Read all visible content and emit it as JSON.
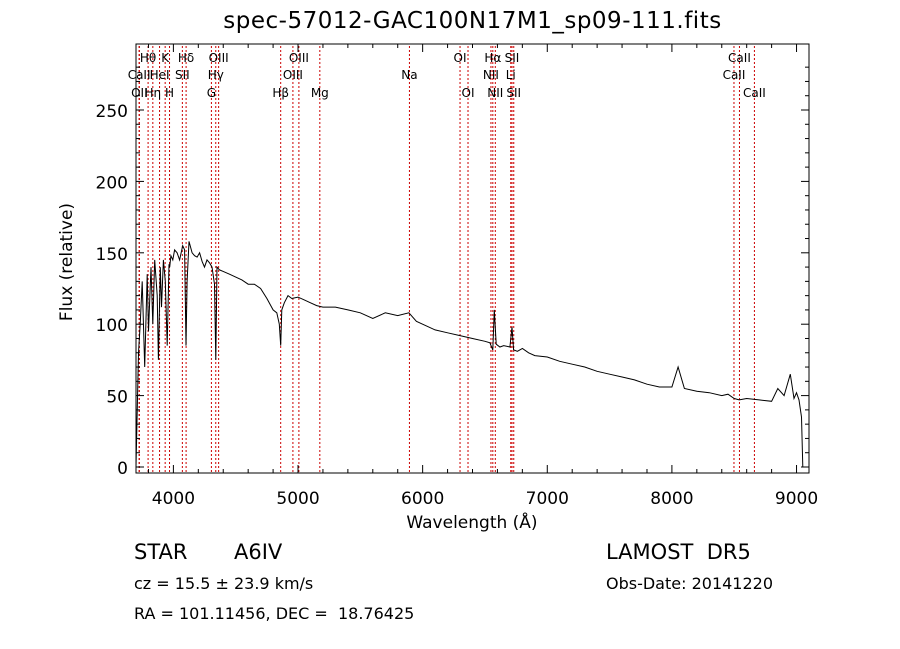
{
  "chart_data": {
    "type": "line",
    "title": "spec-57012-GAC100N17M1_sp09-111.fits",
    "xlabel": "Wavelength (Å)",
    "ylabel": "Flux (relative)",
    "xlim": [
      3700,
      9100
    ],
    "ylim": [
      0,
      290
    ],
    "xticks": [
      4000,
      5000,
      6000,
      7000,
      8000,
      9000
    ],
    "xtick_labels": [
      "4000",
      "5000",
      "6000",
      "7000",
      "8000",
      "9000"
    ],
    "yticks": [
      0,
      50,
      100,
      150,
      200,
      250
    ],
    "ytick_labels": [
      "0",
      "50",
      "100",
      "150",
      "200",
      "250"
    ],
    "grid": false,
    "series": [
      {
        "x": [
          3700,
          3720,
          3734,
          3750,
          3770,
          3790,
          3800,
          3820,
          3835,
          3850,
          3870,
          3880,
          3895,
          3905,
          3920,
          3935,
          3950,
          3965,
          3970,
          3980,
          3995,
          4010,
          4030,
          4050,
          4075,
          4090,
          4101,
          4110,
          4125,
          4150,
          4170,
          4190,
          4210,
          4230,
          4250,
          4270,
          4290,
          4310,
          4330,
          4340,
          4350,
          4370,
          4400,
          4450,
          4500,
          4550,
          4600,
          4650,
          4700,
          4750,
          4800,
          4830,
          4850,
          4861,
          4870,
          4890,
          4920,
          4950,
          5000,
          5050,
          5100,
          5150,
          5200,
          5300,
          5400,
          5500,
          5600,
          5700,
          5800,
          5890,
          5950,
          6000,
          6100,
          6200,
          6300,
          6400,
          6500,
          6540,
          6563,
          6575,
          6590,
          6620,
          6650,
          6700,
          6717,
          6730,
          6760,
          6800,
          6850,
          6900,
          7000,
          7100,
          7200,
          7300,
          7400,
          7500,
          7600,
          7700,
          7800,
          7900,
          8000,
          8050,
          8100,
          8200,
          8300,
          8400,
          8450,
          8500,
          8540,
          8600,
          8700,
          8800,
          8850,
          8900,
          8950,
          8980,
          9000,
          9020,
          9040,
          9050
        ],
        "y": [
          0,
          80,
          100,
          130,
          70,
          135,
          95,
          140,
          100,
          145,
          120,
          75,
          140,
          112,
          145,
          130,
          85,
          142,
          140,
          148,
          145,
          152,
          150,
          145,
          155,
          152,
          85,
          130,
          158,
          150,
          148,
          147,
          150,
          144,
          140,
          145,
          143,
          140,
          128,
          75,
          140,
          138,
          137,
          135,
          133,
          131,
          128,
          128,
          125,
          118,
          110,
          108,
          100,
          85,
          110,
          115,
          120,
          118,
          119,
          117,
          115,
          113,
          112,
          112,
          110,
          108,
          104,
          108,
          106,
          108,
          102,
          100,
          96,
          94,
          92,
          90,
          88,
          87,
          82,
          110,
          86,
          84,
          85,
          84,
          98,
          82,
          81,
          83,
          80,
          78,
          77,
          74,
          72,
          70,
          67,
          65,
          63,
          61,
          58,
          56,
          56,
          70,
          55,
          53,
          52,
          50,
          51,
          48,
          47,
          48,
          47,
          46,
          55,
          50,
          65,
          48,
          52,
          47,
          35,
          0
        ]
      }
    ],
    "line_markers": [
      {
        "label": "Hθ",
        "x": 3797,
        "row": 1
      },
      {
        "label": "CaII",
        "x": 3725,
        "row": 2
      },
      {
        "label": "OII",
        "x": 3727,
        "row": 3
      },
      {
        "label": "Hη",
        "x": 3835,
        "row": 3
      },
      {
        "label": "K",
        "x": 3934,
        "row": 1
      },
      {
        "label": "HeI",
        "x": 3889,
        "row": 2
      },
      {
        "label": "H",
        "x": 3969,
        "row": 3
      },
      {
        "label": "Hδ",
        "x": 4102,
        "row": 1
      },
      {
        "label": "SII",
        "x": 4072,
        "row": 2
      },
      {
        "label": "OIII",
        "x": 4363,
        "row": 1
      },
      {
        "label": "Hγ",
        "x": 4340,
        "row": 2
      },
      {
        "label": "G",
        "x": 4305,
        "row": 3
      },
      {
        "label": "Hβ",
        "x": 4861,
        "row": 3
      },
      {
        "label": "OIII",
        "x": 5007,
        "row": 1
      },
      {
        "label": "OIII",
        "x": 4959,
        "row": 2
      },
      {
        "label": "Mg",
        "x": 5175,
        "row": 3
      },
      {
        "label": "Na",
        "x": 5894,
        "row": 2
      },
      {
        "label": "OI",
        "x": 6300,
        "row": 1
      },
      {
        "label": "OI",
        "x": 6364,
        "row": 3
      },
      {
        "label": "Hα",
        "x": 6563,
        "row": 1
      },
      {
        "label": "NII",
        "x": 6548,
        "row": 2
      },
      {
        "label": "NII",
        "x": 6583,
        "row": 3
      },
      {
        "label": "SII",
        "x": 6717,
        "row": 1
      },
      {
        "label": "Li",
        "x": 6707,
        "row": 2
      },
      {
        "label": "SII",
        "x": 6731,
        "row": 3
      },
      {
        "label": "CaII",
        "x": 8542,
        "row": 1
      },
      {
        "label": "CaII",
        "x": 8498,
        "row": 2
      },
      {
        "label": "CaII",
        "x": 8662,
        "row": 3
      }
    ],
    "line_color": "#000000",
    "marker_color": "#cc0000"
  },
  "info": {
    "class": "STAR",
    "subclass": "A6IV",
    "survey": "LAMOST  DR5",
    "cz": "cz = 15.5 ± 23.9 km/s",
    "obsdate": "Obs-Date: 20141220",
    "coords": "RA = 101.11456, DEC =  18.76425"
  }
}
